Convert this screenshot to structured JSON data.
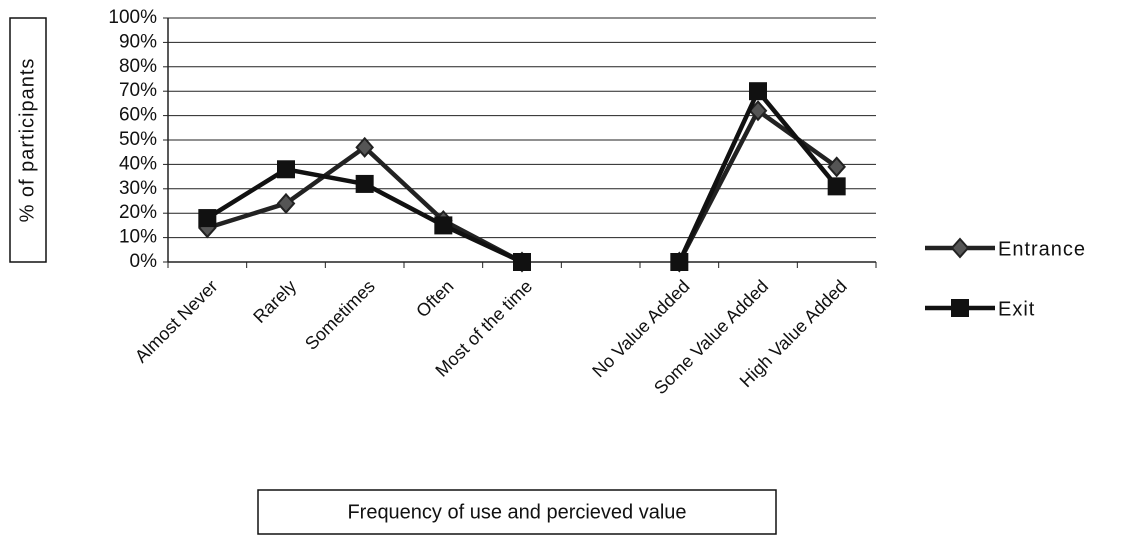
{
  "chart_data": {
    "type": "line",
    "x_label": "Frequency of use and percieved value",
    "y_label": "% of participants",
    "categories": [
      "Almost Never",
      "Rarely",
      "Sometimes",
      "Often",
      "Most of the time",
      null,
      "No Value Added",
      "Some Value Added",
      "High Value Added"
    ],
    "series": [
      {
        "name": "Entrance",
        "color": "#222222",
        "marker": "diamond",
        "values": [
          14,
          24,
          47,
          17,
          0,
          null,
          0,
          62,
          39
        ]
      },
      {
        "name": "Exit",
        "color": "#111111",
        "marker": "square",
        "values": [
          18,
          38,
          32,
          15,
          0,
          null,
          0,
          70,
          31
        ]
      }
    ],
    "ylim": [
      0,
      100
    ],
    "yticks": [
      {
        "value": 0,
        "label": "0%"
      },
      {
        "value": 10,
        "label": "10%"
      },
      {
        "value": 20,
        "label": "20%"
      },
      {
        "value": 30,
        "label": "30%"
      },
      {
        "value": 40,
        "label": "40%"
      },
      {
        "value": 50,
        "label": "50%"
      },
      {
        "value": 60,
        "label": "60%"
      },
      {
        "value": 70,
        "label": "70%"
      },
      {
        "value": 80,
        "label": "80%"
      },
      {
        "value": 90,
        "label": "90%"
      },
      {
        "value": 100,
        "label": "100%"
      }
    ],
    "grid": true,
    "legend": "right"
  }
}
